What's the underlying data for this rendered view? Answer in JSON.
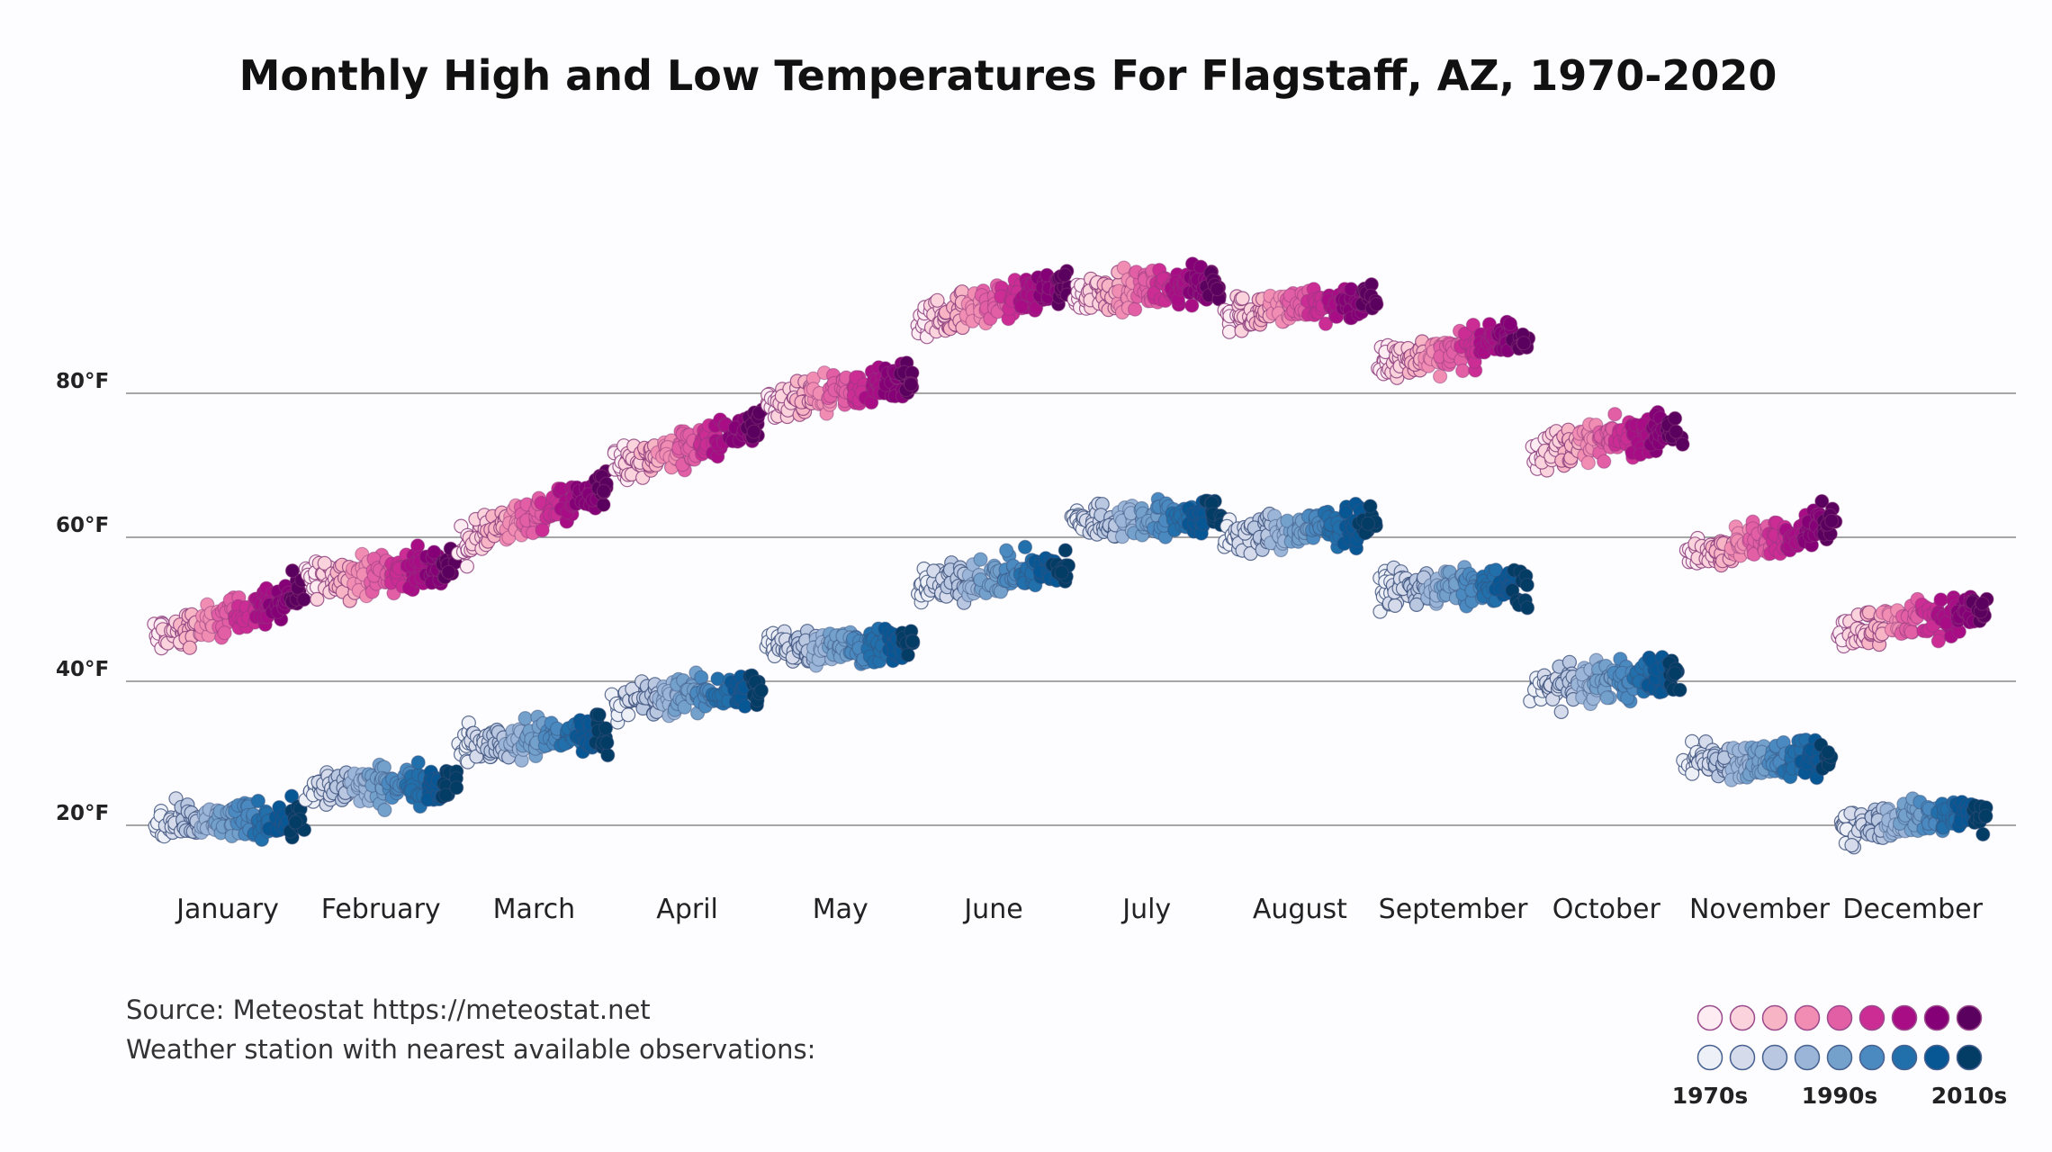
{
  "chart_data": {
    "type": "scatter",
    "title": "Monthly High and Low Temperatures For Flagstaff, AZ, 1970-2020",
    "xlabel": "",
    "ylabel": "",
    "categories": [
      "January",
      "February",
      "March",
      "April",
      "May",
      "June",
      "July",
      "August",
      "September",
      "October",
      "November",
      "December"
    ],
    "y_ticks": [
      {
        "value": 20,
        "label": "20°F"
      },
      {
        "value": 40,
        "label": "40°F"
      },
      {
        "value": 60,
        "label": "60°F"
      },
      {
        "value": 80,
        "label": "80°F"
      }
    ],
    "ylim": [
      12,
      100
    ],
    "grid": true,
    "years": [
      1970,
      2020
    ],
    "series": [
      {
        "name": "High",
        "trend_start": [
          46,
          54,
          59,
          70,
          78,
          90,
          94,
          91,
          84,
          72,
          57,
          47
        ],
        "trend_end": [
          52,
          56,
          67,
          75,
          82,
          95,
          95,
          93,
          88,
          75,
          62,
          50
        ]
      },
      {
        "name": "Low",
        "trend_start": [
          20,
          25,
          31,
          37,
          45,
          53,
          62,
          60,
          53,
          39,
          29,
          20
        ],
        "trend_end": [
          21,
          26,
          33,
          39,
          45,
          56,
          63,
          62,
          53,
          41,
          29,
          22
        ]
      }
    ],
    "legend": {
      "position": "bottom-right",
      "labels": [
        "1970s",
        "1990s",
        "2010s"
      ],
      "high_colors": [
        "#fdecf2",
        "#fbd3dc",
        "#f7b4c5",
        "#f18cb3",
        "#e35fa5",
        "#cc2d95",
        "#a80d86",
        "#850077",
        "#5a005e"
      ],
      "low_colors": [
        "#eef0f7",
        "#d5dbeb",
        "#b9c7e1",
        "#9ab5d8",
        "#73a1cc",
        "#4b8ac0",
        "#2170ac",
        "#085795",
        "#033c64"
      ]
    }
  },
  "source_note": "Source: Meteostat https://meteostat.net",
  "station_note": "Weather station with nearest available observations:"
}
